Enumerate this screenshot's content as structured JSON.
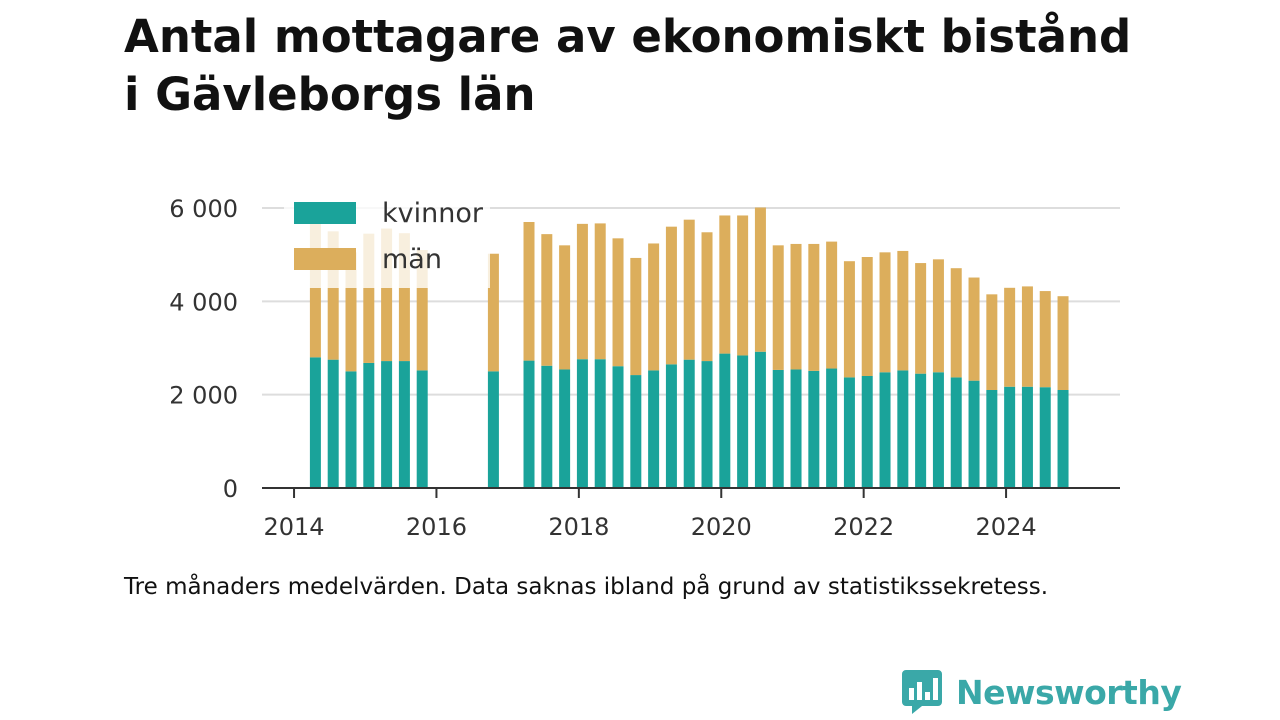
{
  "title_lines": [
    "Antal mottagare av ekonomiskt bistånd",
    "i Gävleborgs län"
  ],
  "footnote": "Tre månaders medelvärden. Data saknas ibland på grund av statistikssekretess.",
  "brand": {
    "name": "Newsworthy"
  },
  "colors": {
    "kvinnor": "#1aa39a",
    "man": "#dcae5c",
    "grid": "#dddddd",
    "axis": "#333333",
    "text": "#333333"
  },
  "chart_data": {
    "type": "bar",
    "stacked": true,
    "x": [
      2014.3,
      2014.55,
      2014.8,
      2015.05,
      2015.3,
      2015.55,
      2015.8,
      2016.8,
      2017.3,
      2017.55,
      2017.8,
      2018.05,
      2018.3,
      2018.55,
      2018.8,
      2019.05,
      2019.3,
      2019.55,
      2019.8,
      2020.05,
      2020.3,
      2020.55,
      2020.8,
      2021.05,
      2021.3,
      2021.55,
      2021.8,
      2022.05,
      2022.3,
      2022.55,
      2022.8,
      2023.05,
      2023.3,
      2023.55,
      2023.8,
      2024.05,
      2024.3,
      2024.55,
      2024.8
    ],
    "series": [
      {
        "name": "kvinnor",
        "values": [
          2800,
          2750,
          2500,
          2680,
          2720,
          2720,
          2520,
          2500,
          2730,
          2620,
          2540,
          2760,
          2760,
          2610,
          2420,
          2520,
          2650,
          2750,
          2720,
          2880,
          2840,
          2920,
          2530,
          2540,
          2510,
          2560,
          2370,
          2400,
          2480,
          2520,
          2450,
          2480,
          2370,
          2300,
          2100,
          2170,
          2170,
          2160,
          2100
        ]
      },
      {
        "name": "män",
        "values": [
          2950,
          2750,
          2550,
          2770,
          2840,
          2740,
          2580,
          2520,
          2970,
          2820,
          2660,
          2900,
          2910,
          2740,
          2510,
          2720,
          2950,
          3000,
          2760,
          2960,
          3000,
          3090,
          2670,
          2690,
          2720,
          2720,
          2490,
          2550,
          2570,
          2560,
          2370,
          2420,
          2340,
          2210,
          2050,
          2120,
          2150,
          2060,
          2010
        ]
      }
    ],
    "xlim": [
      2013.55,
      2025.6
    ],
    "ylim": [
      0,
      6000
    ],
    "yticks": [
      0,
      2000,
      4000,
      6000
    ],
    "ytick_labels": [
      "0",
      "2 000",
      "4 000",
      "6 000"
    ],
    "xticks": [
      2014,
      2016,
      2018,
      2020,
      2022,
      2024
    ],
    "xtick_labels": [
      "2014",
      "2016",
      "2018",
      "2020",
      "2022",
      "2024"
    ],
    "legend": {
      "position": "top-left",
      "entries": [
        "kvinnor",
        "män"
      ]
    },
    "grid": "horizontal"
  }
}
